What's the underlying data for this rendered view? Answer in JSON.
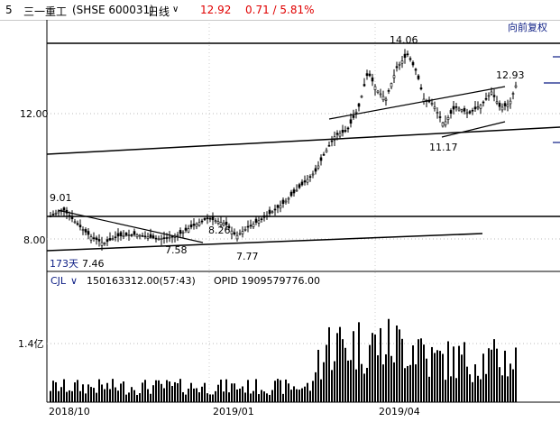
{
  "header": {
    "num": "5",
    "name": "三一重工",
    "code": "(SHSE 600031)",
    "period": "日线",
    "price": "12.92",
    "change": "0.71 / 5.81%",
    "adjust": "向前复权"
  },
  "price_axis": {
    "labels": [
      "12.00",
      "8.00"
    ]
  },
  "annotations": {
    "high": "14.06",
    "last": "12.93",
    "low1": "11.17",
    "p901": "9.01",
    "p826": "8.26",
    "p758": "7.58",
    "p777": "7.77",
    "p746": "7.46",
    "days": "173天"
  },
  "volume": {
    "label": "CJL",
    "value": "150163312.00(57:43)",
    "opid": "OPID 1909579776.00",
    "axis_label": "1.4亿"
  },
  "x_axis": {
    "labels": [
      "2018/10",
      "2019/01",
      "2019/04"
    ]
  },
  "colors": {
    "accent_red": "#e00000",
    "navy": "#0b1c84"
  }
}
